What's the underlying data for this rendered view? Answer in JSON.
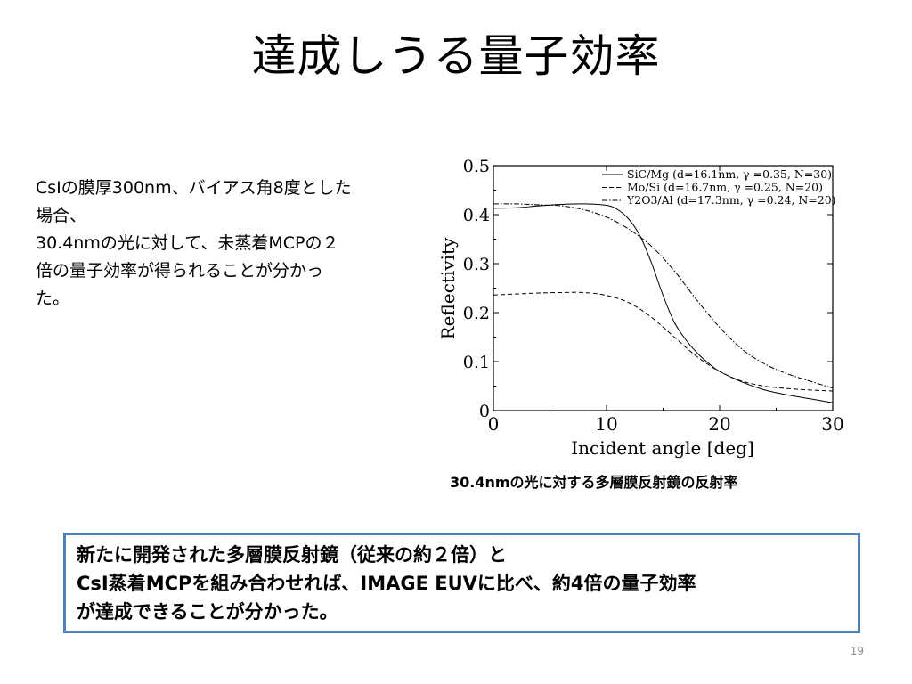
{
  "title": "達成しうる量子効率",
  "body_lines": [
    "CsIの膜厚300nm、バイアス角8度とした",
    "場合、",
    "30.4nmの光に対して、未蒸着MCPの２",
    "倍の量子効率が得られることが分かっ",
    "た。"
  ],
  "chart_caption": "30.4nmの光に対する多層膜反射鏡の反射率",
  "summary_lines": [
    "新たに開発された多層膜反射鏡（従来の約２倍）と",
    "CsI蒸着MCPを組み合わせれば、IMAGE EUVに比べ、約4倍の量子効率",
    "が達成できることが分かった。"
  ],
  "page_number": "19",
  "chart_data": {
    "type": "line",
    "xlabel": "Incident angle [deg]",
    "ylabel": "Reflectivity",
    "xlim": [
      0,
      30
    ],
    "ylim": [
      0,
      0.5
    ],
    "xticks": [
      "0",
      "10",
      "20",
      "30"
    ],
    "yticks": [
      "0",
      "0.1",
      "0.2",
      "0.3",
      "0.4",
      "0.5"
    ],
    "legend_position": "top-right",
    "series": [
      {
        "name": "SiC/Mg (d=16.1nm,   γ =0.35, N=30)",
        "style": "solid",
        "x": [
          0,
          2,
          4,
          6,
          8,
          10,
          11,
          12,
          13,
          14,
          15,
          16,
          17,
          18,
          19,
          20,
          22,
          24,
          26,
          28,
          30
        ],
        "y": [
          0.413,
          0.414,
          0.418,
          0.421,
          0.422,
          0.419,
          0.41,
          0.39,
          0.355,
          0.3,
          0.235,
          0.18,
          0.145,
          0.118,
          0.097,
          0.08,
          0.058,
          0.042,
          0.032,
          0.024,
          0.016
        ]
      },
      {
        "name": "Mo/Si (d=16.7nm,   γ =0.25, N=20)",
        "style": "dashed",
        "x": [
          0,
          2,
          4,
          6,
          8,
          10,
          12,
          14,
          16,
          18,
          20,
          22,
          24,
          26,
          28,
          30
        ],
        "y": [
          0.236,
          0.238,
          0.24,
          0.241,
          0.241,
          0.235,
          0.22,
          0.19,
          0.15,
          0.11,
          0.08,
          0.06,
          0.05,
          0.045,
          0.042,
          0.04
        ]
      },
      {
        "name": "Y2O3/Al (d=17.3nm,   γ =0.24, N=20)",
        "style": "dashdot",
        "x": [
          0,
          2,
          4,
          6,
          8,
          10,
          12,
          14,
          16,
          18,
          20,
          22,
          24,
          26,
          28,
          30
        ],
        "y": [
          0.422,
          0.422,
          0.42,
          0.418,
          0.41,
          0.395,
          0.37,
          0.335,
          0.285,
          0.225,
          0.17,
          0.125,
          0.095,
          0.075,
          0.06,
          0.046
        ]
      }
    ]
  }
}
